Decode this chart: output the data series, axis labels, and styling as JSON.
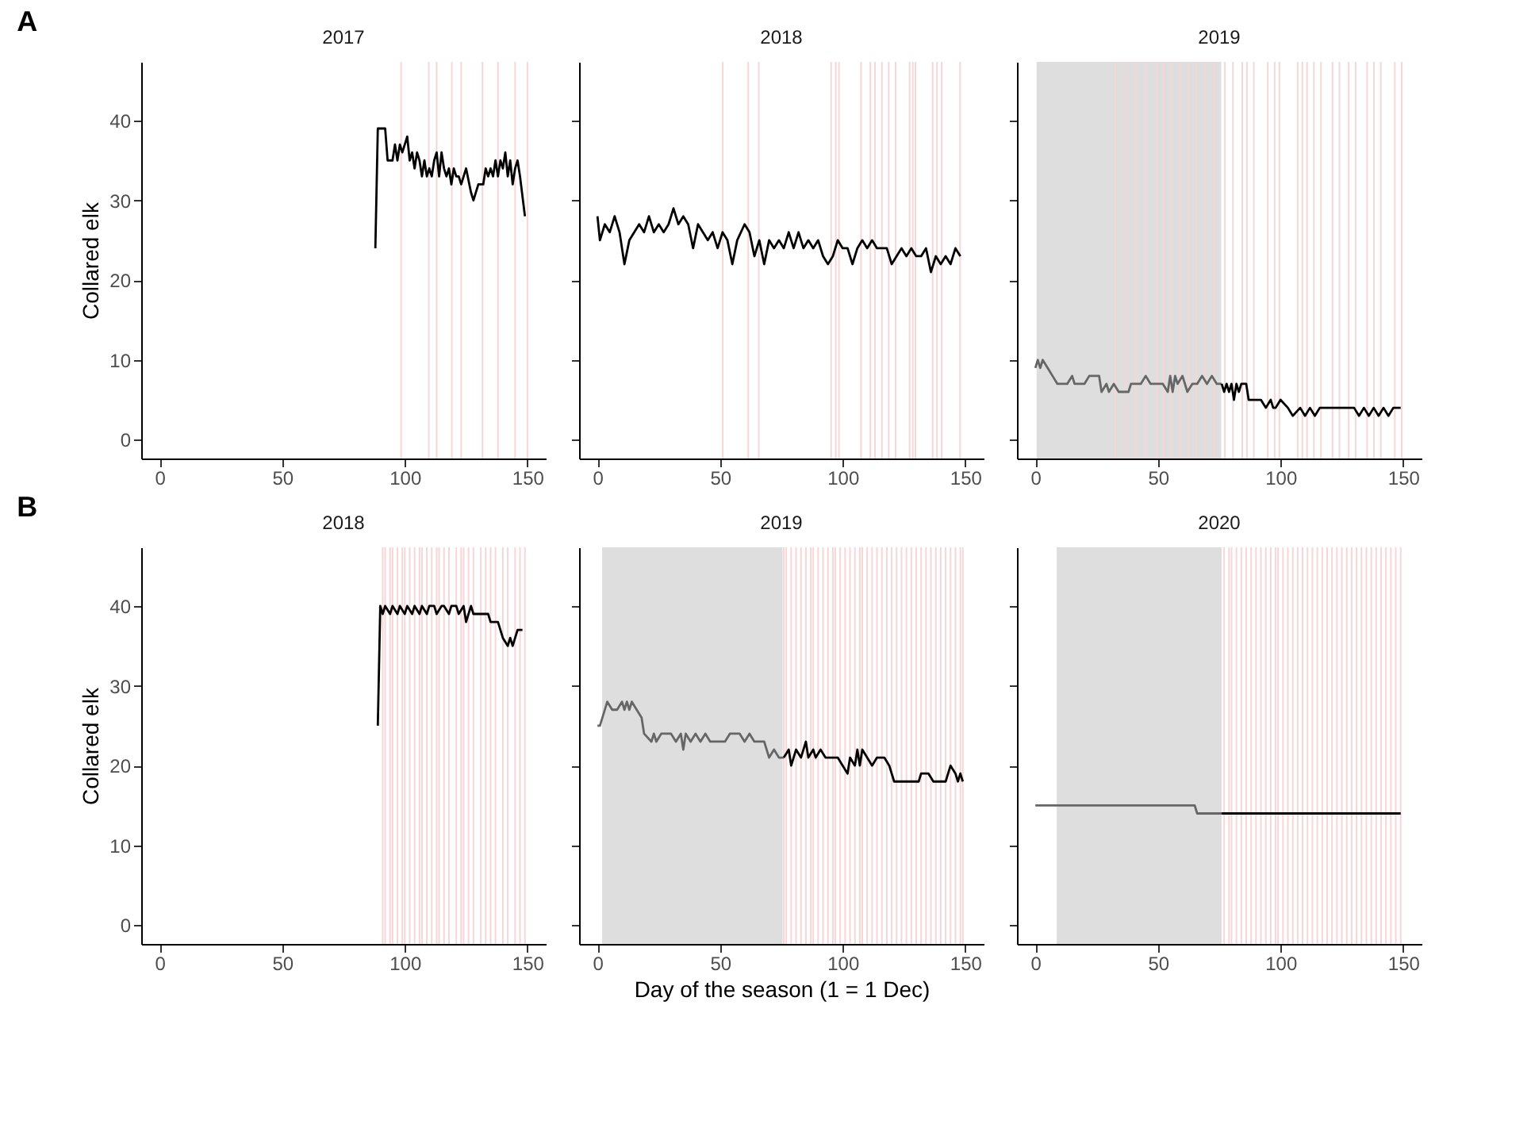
{
  "chart_data": [
    {
      "type": "line",
      "title": "2017",
      "ylabel": "Collared elk",
      "annotations": [
        "A"
      ],
      "xlim": [
        -7.5,
        157.5
      ],
      "ylim": [
        -2.35,
        47.35
      ],
      "xticks": [
        0,
        50,
        100,
        150
      ],
      "yticks": [
        0,
        10,
        20,
        30,
        40
      ],
      "grid": false,
      "series": [
        {
          "color": "#000000",
          "x": [
            88,
            89,
            92,
            93,
            95,
            96,
            97,
            98,
            99,
            100,
            101,
            102,
            103,
            104,
            105,
            106,
            107,
            108,
            109,
            110,
            111,
            112,
            113,
            114,
            115,
            116,
            117,
            118,
            119,
            120,
            121,
            122,
            123,
            125,
            127,
            128,
            130,
            132,
            133,
            134,
            135,
            136,
            137,
            138,
            139,
            140,
            141,
            142,
            143,
            144,
            145,
            146,
            147,
            149
          ],
          "values": [
            24,
            39,
            39,
            35,
            35,
            37,
            35,
            37,
            36,
            37,
            38,
            35,
            36,
            34,
            36,
            35,
            33,
            35,
            33,
            34,
            33,
            35,
            36,
            33,
            36,
            34,
            33,
            34,
            32,
            34,
            33,
            33,
            32,
            34,
            31,
            30,
            32,
            32,
            34,
            33,
            34,
            33,
            35,
            33,
            35,
            34,
            36,
            33,
            35,
            32,
            34,
            35,
            33,
            28
          ]
        }
      ],
      "ref_lines": [
        {
          "axis": "x",
          "value": 98.5,
          "color": "#f6d6d6"
        },
        {
          "axis": "x",
          "value": 109.8,
          "color": "#f6d6d6"
        },
        {
          "axis": "x",
          "value": 113,
          "color": "#f6d6d6"
        },
        {
          "axis": "x",
          "value": 119.2,
          "color": "#f6d6d6"
        },
        {
          "axis": "x",
          "value": 123,
          "color": "#f6d6d6"
        },
        {
          "axis": "x",
          "value": 131.7,
          "color": "#f6d6d6"
        },
        {
          "axis": "x",
          "value": 138,
          "color": "#f6d6d6"
        },
        {
          "axis": "x",
          "value": 145,
          "color": "#f6d6d6"
        },
        {
          "axis": "x",
          "value": 150,
          "color": "#f6d6d6"
        }
      ]
    },
    {
      "type": "line",
      "title": "2018",
      "xlim": [
        -7.5,
        157.5
      ],
      "ylim": [
        -2.35,
        47.35
      ],
      "xticks": [
        0,
        50,
        100,
        150
      ],
      "yticks": [
        0,
        10,
        20,
        30,
        40
      ],
      "grid": false,
      "tick_labels": "x",
      "series": [
        {
          "color": "#000000",
          "x": [
            0,
            1,
            3,
            5,
            7,
            9,
            11,
            13,
            15,
            17,
            19,
            21,
            23,
            25,
            27,
            29,
            31,
            33,
            35,
            37,
            39,
            41,
            43,
            45,
            47,
            49,
            51,
            53,
            55,
            57,
            60,
            62,
            64,
            66,
            68,
            70,
            72,
            74,
            76,
            78,
            80,
            82,
            84,
            86,
            88,
            90,
            92,
            94,
            96,
            98,
            100,
            102,
            104,
            106,
            108,
            110,
            112,
            114,
            118,
            120,
            122,
            124,
            126,
            128,
            130,
            132,
            134,
            136,
            138,
            140,
            142,
            144,
            146,
            148
          ],
          "values": [
            28,
            25,
            27,
            26,
            28,
            26,
            22,
            25,
            26,
            27,
            26,
            28,
            26,
            27,
            26,
            27,
            29,
            27,
            28,
            27,
            24,
            27,
            26,
            25,
            26,
            24,
            26,
            25,
            22,
            25,
            27,
            26,
            23,
            25,
            22,
            25,
            24,
            25,
            24,
            26,
            24,
            26,
            24,
            25,
            24,
            25,
            23,
            22,
            23,
            25,
            24,
            24,
            22,
            24,
            25,
            24,
            25,
            24,
            24,
            22,
            23,
            24,
            23,
            24,
            23,
            23,
            24,
            21,
            23,
            22,
            23,
            22,
            24,
            23
          ]
        }
      ],
      "ref_lines": [
        {
          "axis": "x",
          "value": 51.1,
          "color": "#f6d6d6"
        },
        {
          "axis": "x",
          "value": 61.5,
          "color": "#f6d6d6"
        },
        {
          "axis": "x",
          "value": 65.8,
          "color": "#f6d6d6"
        },
        {
          "axis": "x",
          "value": 95.3,
          "color": "#f6d6d6"
        },
        {
          "axis": "x",
          "value": 97.2,
          "color": "#f6d6d6"
        },
        {
          "axis": "x",
          "value": 98.5,
          "color": "#f6d6d6"
        },
        {
          "axis": "x",
          "value": 107.5,
          "color": "#f6d6d6"
        },
        {
          "axis": "x",
          "value": 111.3,
          "color": "#f6d6d6"
        },
        {
          "axis": "x",
          "value": 113.2,
          "color": "#f6d6d6"
        },
        {
          "axis": "x",
          "value": 116,
          "color": "#f6d6d6"
        },
        {
          "axis": "x",
          "value": 118.8,
          "color": "#f6d6d6"
        },
        {
          "axis": "x",
          "value": 121.6,
          "color": "#f6d6d6"
        },
        {
          "axis": "x",
          "value": 127.3,
          "color": "#f6d6d6"
        },
        {
          "axis": "x",
          "value": 128.6,
          "color": "#f6d6d6"
        },
        {
          "axis": "x",
          "value": 129.7,
          "color": "#f6d6d6"
        },
        {
          "axis": "x",
          "value": 136.7,
          "color": "#f6d6d6"
        },
        {
          "axis": "x",
          "value": 138.5,
          "color": "#f6d6d6"
        },
        {
          "axis": "x",
          "value": 140.4,
          "color": "#f6d6d6"
        },
        {
          "axis": "x",
          "value": 147.9,
          "color": "#f6d6d6"
        }
      ]
    },
    {
      "type": "line",
      "title": "2019",
      "xlim": [
        -7.5,
        157.5
      ],
      "ylim": [
        -2.35,
        47.35
      ],
      "xticks": [
        0,
        50,
        100,
        150
      ],
      "yticks": [
        0,
        10,
        20,
        30,
        40
      ],
      "grid": false,
      "tick_labels": "x",
      "bands": [
        {
          "axis": "x",
          "from": 0.5,
          "to": 75.8,
          "color": "#dedede"
        }
      ],
      "series": [
        {
          "color": "#666666",
          "x": [
            0,
            1,
            2,
            3,
            5,
            7,
            9,
            13,
            15,
            16,
            20,
            22,
            26,
            27,
            29,
            30,
            32,
            34,
            38,
            39,
            43,
            45,
            47,
            52,
            54,
            55,
            56,
            57,
            58,
            60,
            62,
            64,
            66,
            68,
            70,
            72,
            74,
            76
          ],
          "values": [
            9,
            10,
            9,
            10,
            9,
            8,
            7,
            7,
            8,
            7,
            7,
            8,
            8,
            6,
            7,
            6,
            7,
            6,
            6,
            7,
            7,
            8,
            7,
            7,
            6,
            8,
            6,
            8,
            7,
            8,
            6,
            7,
            7,
            8,
            7,
            8,
            7,
            7
          ]
        },
        {
          "color": "#000000",
          "x": [
            76,
            77,
            78,
            79,
            80,
            81,
            82,
            83,
            84,
            86,
            87,
            90,
            92,
            94,
            96,
            97,
            98,
            100,
            103,
            105,
            108,
            110,
            112,
            114,
            116,
            120,
            125,
            130,
            132,
            134,
            136,
            138,
            140,
            142,
            144,
            146,
            148,
            149
          ],
          "values": [
            7,
            6,
            7,
            6,
            7,
            5,
            7,
            6,
            7,
            7,
            5,
            5,
            5,
            4,
            5,
            4,
            4,
            5,
            4,
            3,
            4,
            3,
            4,
            3,
            4,
            4,
            4,
            4,
            3,
            4,
            3,
            4,
            3,
            4,
            3,
            4,
            4,
            4
          ]
        }
      ],
      "ref_lines": [
        {
          "axis": "x",
          "value": 32.6,
          "color": "#f6d6d6"
        },
        {
          "axis": "x",
          "value": 36.9,
          "color": "#f6d6d6"
        },
        {
          "axis": "x",
          "value": 41.1,
          "color": "#f6d6d6"
        },
        {
          "axis": "x",
          "value": 44.8,
          "color": "#f6d6d6"
        },
        {
          "axis": "x",
          "value": 49.6,
          "color": "#f6d6d6"
        },
        {
          "axis": "x",
          "value": 52.4,
          "color": "#f6d6d6"
        },
        {
          "axis": "x",
          "value": 55.2,
          "color": "#f6d6d6"
        },
        {
          "axis": "x",
          "value": 59,
          "color": "#f6d6d6"
        },
        {
          "axis": "x",
          "value": 62.7,
          "color": "#f6d6d6"
        },
        {
          "axis": "x",
          "value": 65.6,
          "color": "#f6d6d6"
        },
        {
          "axis": "x",
          "value": 69.3,
          "color": "#f6d6d6"
        },
        {
          "axis": "x",
          "value": 73.1,
          "color": "#f6d6d6"
        },
        {
          "axis": "x",
          "value": 77.3,
          "color": "#f6d6d6"
        },
        {
          "axis": "x",
          "value": 80.6,
          "color": "#f6d6d6"
        },
        {
          "axis": "x",
          "value": 84.4,
          "color": "#f6d6d6"
        },
        {
          "axis": "x",
          "value": 86.3,
          "color": "#f6d6d6"
        },
        {
          "axis": "x",
          "value": 89.1,
          "color": "#f6d6d6"
        },
        {
          "axis": "x",
          "value": 94.8,
          "color": "#f6d6d6"
        },
        {
          "axis": "x",
          "value": 97.6,
          "color": "#f6d6d6"
        },
        {
          "axis": "x",
          "value": 99.5,
          "color": "#f6d6d6"
        },
        {
          "axis": "x",
          "value": 107,
          "color": "#f6d6d6"
        },
        {
          "axis": "x",
          "value": 108.9,
          "color": "#f6d6d6"
        },
        {
          "axis": "x",
          "value": 110.8,
          "color": "#f6d6d6"
        },
        {
          "axis": "x",
          "value": 113.6,
          "color": "#f6d6d6"
        },
        {
          "axis": "x",
          "value": 116.5,
          "color": "#f6d6d6"
        },
        {
          "axis": "x",
          "value": 121.2,
          "color": "#f6d6d6"
        },
        {
          "axis": "x",
          "value": 124,
          "color": "#f6d6d6"
        },
        {
          "axis": "x",
          "value": 127.8,
          "color": "#f6d6d6"
        },
        {
          "axis": "x",
          "value": 130.6,
          "color": "#f6d6d6"
        },
        {
          "axis": "x",
          "value": 135.3,
          "color": "#f6d6d6"
        },
        {
          "axis": "x",
          "value": 138.1,
          "color": "#f6d6d6"
        },
        {
          "axis": "x",
          "value": 140.9,
          "color": "#f6d6d6"
        },
        {
          "axis": "x",
          "value": 146.6,
          "color": "#f6d6d6"
        },
        {
          "axis": "x",
          "value": 149.4,
          "color": "#f6d6d6"
        }
      ]
    },
    {
      "type": "line",
      "title": "2018",
      "ylabel": "Collared elk",
      "annotations": [
        "B"
      ],
      "xlim": [
        -7.5,
        157.5
      ],
      "ylim": [
        -2.35,
        47.35
      ],
      "xticks": [
        0,
        50,
        100,
        150
      ],
      "yticks": [
        0,
        10,
        20,
        30,
        40
      ],
      "grid": false,
      "series": [
        {
          "color": "#000000",
          "x": [
            89,
            90,
            91,
            92,
            94,
            95,
            97,
            98,
            100,
            101,
            103,
            104,
            106,
            107,
            109,
            110,
            112,
            113,
            115,
            116,
            118,
            119,
            121,
            122,
            124,
            125,
            127,
            128,
            130,
            132,
            134,
            135,
            138,
            140,
            142,
            143,
            144,
            146,
            148
          ],
          "values": [
            25,
            40,
            39,
            40,
            39,
            40,
            39,
            40,
            39,
            40,
            39,
            40,
            39,
            40,
            39,
            40,
            40,
            39,
            40,
            40,
            39,
            40,
            40,
            39,
            40,
            38,
            40,
            39,
            39,
            39,
            39,
            38,
            38,
            36,
            35,
            36,
            35,
            37,
            37
          ]
        }
      ],
      "ref_lines": [
        {
          "axis": "x",
          "value": 91,
          "color": "#f6d6d6"
        },
        {
          "axis": "x",
          "value": 92,
          "color": "#f6d6d6"
        },
        {
          "axis": "x",
          "value": 94,
          "color": "#f6d6d6"
        },
        {
          "axis": "x",
          "value": 95,
          "color": "#f6d6d6"
        },
        {
          "axis": "x",
          "value": 97,
          "color": "#f6d6d6"
        },
        {
          "axis": "x",
          "value": 99,
          "color": "#f6d6d6"
        },
        {
          "axis": "x",
          "value": 100,
          "color": "#f6d6d6"
        },
        {
          "axis": "x",
          "value": 102,
          "color": "#f6d6d6"
        },
        {
          "axis": "x",
          "value": 104,
          "color": "#f6d6d6"
        },
        {
          "axis": "x",
          "value": 106,
          "color": "#f6d6d6"
        },
        {
          "axis": "x",
          "value": 107,
          "color": "#f6d6d6"
        },
        {
          "axis": "x",
          "value": 109,
          "color": "#f6d6d6"
        },
        {
          "axis": "x",
          "value": 111,
          "color": "#f6d6d6"
        },
        {
          "axis": "x",
          "value": 113,
          "color": "#f6d6d6"
        },
        {
          "axis": "x",
          "value": 114,
          "color": "#f6d6d6"
        },
        {
          "axis": "x",
          "value": 116,
          "color": "#f6d6d6"
        },
        {
          "axis": "x",
          "value": 118,
          "color": "#f6d6d6"
        },
        {
          "axis": "x",
          "value": 121,
          "color": "#f6d6d6"
        },
        {
          "axis": "x",
          "value": 123,
          "color": "#f6d6d6"
        },
        {
          "axis": "x",
          "value": 124,
          "color": "#f6d6d6"
        },
        {
          "axis": "x",
          "value": 126,
          "color": "#f6d6d6"
        },
        {
          "axis": "x",
          "value": 128,
          "color": "#f6d6d6"
        },
        {
          "axis": "x",
          "value": 131,
          "color": "#f6d6d6"
        },
        {
          "axis": "x",
          "value": 133,
          "color": "#f6d6d6"
        },
        {
          "axis": "x",
          "value": 135,
          "color": "#f6d6d6"
        },
        {
          "axis": "x",
          "value": 137,
          "color": "#f6d6d6"
        },
        {
          "axis": "x",
          "value": 140,
          "color": "#f6d6d6"
        },
        {
          "axis": "x",
          "value": 142,
          "color": "#f6d6d6"
        },
        {
          "axis": "x",
          "value": 145,
          "color": "#f6d6d6"
        },
        {
          "axis": "x",
          "value": 147,
          "color": "#f6d6d6"
        },
        {
          "axis": "x",
          "value": 149,
          "color": "#f6d6d6"
        }
      ]
    },
    {
      "type": "line",
      "title": "2019",
      "xlabel": "Day of the season (1 = 1 Dec)",
      "xlim": [
        -7.5,
        157.5
      ],
      "ylim": [
        -2.35,
        47.35
      ],
      "xticks": [
        0,
        50,
        100,
        150
      ],
      "yticks": [
        0,
        10,
        20,
        30,
        40
      ],
      "grid": false,
      "tick_labels": "x",
      "bands": [
        {
          "axis": "x",
          "from": 1.9,
          "to": 75.5,
          "color": "#dedede"
        }
      ],
      "series": [
        {
          "color": "#666666",
          "x": [
            0,
            1,
            2,
            4,
            6,
            8,
            10,
            11,
            12,
            13,
            14,
            16,
            18,
            19,
            22,
            23,
            24,
            26,
            30,
            32,
            34,
            35,
            36,
            38,
            40,
            42,
            44,
            46,
            52,
            54,
            58,
            60,
            62,
            64,
            68,
            70,
            72,
            74,
            76
          ],
          "values": [
            25,
            25,
            26,
            28,
            27,
            27,
            28,
            27,
            28,
            27,
            28,
            27,
            26,
            24,
            23,
            24,
            23,
            24,
            24,
            23,
            24,
            22,
            24,
            23,
            24,
            23,
            24,
            23,
            23,
            24,
            24,
            23,
            24,
            23,
            23,
            21,
            22,
            21,
            21
          ]
        },
        {
          "color": "#000000",
          "x": [
            76,
            78,
            79,
            81,
            83,
            85,
            86,
            88,
            89,
            91,
            93,
            98,
            100,
            102,
            103,
            105,
            106,
            107,
            108,
            110,
            112,
            114,
            117,
            119,
            121,
            131,
            132,
            135,
            137,
            142,
            143,
            144,
            146,
            147,
            148,
            149
          ],
          "values": [
            21,
            22,
            20,
            22,
            21,
            23,
            21,
            22,
            21,
            22,
            21,
            21,
            20,
            19,
            21,
            20,
            22,
            20,
            22,
            21,
            20,
            21,
            21,
            20,
            18,
            18,
            19,
            19,
            18,
            18,
            19,
            20,
            19,
            18,
            19,
            18
          ]
        }
      ],
      "ref_lines": [
        {
          "axis": "x",
          "value": 76,
          "color": "#f6d6d6"
        },
        {
          "axis": "x",
          "value": 77,
          "color": "#f6d6d6"
        },
        {
          "axis": "x",
          "value": 79,
          "color": "#f6d6d6"
        },
        {
          "axis": "x",
          "value": 81,
          "color": "#f6d6d6"
        },
        {
          "axis": "x",
          "value": 83,
          "color": "#f6d6d6"
        },
        {
          "axis": "x",
          "value": 85,
          "color": "#f6d6d6"
        },
        {
          "axis": "x",
          "value": 87,
          "color": "#f6d6d6"
        },
        {
          "axis": "x",
          "value": 88,
          "color": "#f6d6d6"
        },
        {
          "axis": "x",
          "value": 90,
          "color": "#f6d6d6"
        },
        {
          "axis": "x",
          "value": 92,
          "color": "#f6d6d6"
        },
        {
          "axis": "x",
          "value": 94,
          "color": "#f6d6d6"
        },
        {
          "axis": "x",
          "value": 96,
          "color": "#f6d6d6"
        },
        {
          "axis": "x",
          "value": 97,
          "color": "#f6d6d6"
        },
        {
          "axis": "x",
          "value": 99,
          "color": "#f6d6d6"
        },
        {
          "axis": "x",
          "value": 101,
          "color": "#f6d6d6"
        },
        {
          "axis": "x",
          "value": 103,
          "color": "#f6d6d6"
        },
        {
          "axis": "x",
          "value": 105,
          "color": "#f6d6d6"
        },
        {
          "axis": "x",
          "value": 107,
          "color": "#f6d6d6"
        },
        {
          "axis": "x",
          "value": 108,
          "color": "#f6d6d6"
        },
        {
          "axis": "x",
          "value": 110,
          "color": "#f6d6d6"
        },
        {
          "axis": "x",
          "value": 112,
          "color": "#f6d6d6"
        },
        {
          "axis": "x",
          "value": 114,
          "color": "#f6d6d6"
        },
        {
          "axis": "x",
          "value": 116,
          "color": "#f6d6d6"
        },
        {
          "axis": "x",
          "value": 118,
          "color": "#f6d6d6"
        },
        {
          "axis": "x",
          "value": 120,
          "color": "#f6d6d6"
        },
        {
          "axis": "x",
          "value": 122,
          "color": "#f6d6d6"
        },
        {
          "axis": "x",
          "value": 124,
          "color": "#f6d6d6"
        },
        {
          "axis": "x",
          "value": 126,
          "color": "#f6d6d6"
        },
        {
          "axis": "x",
          "value": 128,
          "color": "#f6d6d6"
        },
        {
          "axis": "x",
          "value": 130,
          "color": "#f6d6d6"
        },
        {
          "axis": "x",
          "value": 132,
          "color": "#f6d6d6"
        },
        {
          "axis": "x",
          "value": 134,
          "color": "#f6d6d6"
        },
        {
          "axis": "x",
          "value": 136,
          "color": "#f6d6d6"
        },
        {
          "axis": "x",
          "value": 138,
          "color": "#f6d6d6"
        },
        {
          "axis": "x",
          "value": 140,
          "color": "#f6d6d6"
        },
        {
          "axis": "x",
          "value": 142,
          "color": "#f6d6d6"
        },
        {
          "axis": "x",
          "value": 144,
          "color": "#f6d6d6"
        },
        {
          "axis": "x",
          "value": 146,
          "color": "#f6d6d6"
        },
        {
          "axis": "x",
          "value": 148,
          "color": "#f6d6d6"
        },
        {
          "axis": "x",
          "value": 149,
          "color": "#f6d6d6"
        }
      ]
    },
    {
      "type": "line",
      "title": "2020",
      "xlim": [
        -7.5,
        157.5
      ],
      "ylim": [
        -2.35,
        47.35
      ],
      "xticks": [
        0,
        50,
        100,
        150
      ],
      "yticks": [
        0,
        10,
        20,
        30,
        40
      ],
      "grid": false,
      "tick_labels": "x",
      "bands": [
        {
          "axis": "x",
          "from": 8.7,
          "to": 76,
          "color": "#dedede"
        }
      ],
      "series": [
        {
          "color": "#666666",
          "x": [
            0,
            8,
            65,
            66,
            76
          ],
          "values": [
            15,
            15,
            15,
            14,
            14
          ]
        },
        {
          "color": "#000000",
          "x": [
            76,
            149
          ],
          "values": [
            14,
            14
          ]
        }
      ],
      "ref_lines": [
        {
          "axis": "x",
          "value": 77,
          "color": "#f6d6d6"
        },
        {
          "axis": "x",
          "value": 79,
          "color": "#f6d6d6"
        },
        {
          "axis": "x",
          "value": 80,
          "color": "#f6d6d6"
        },
        {
          "axis": "x",
          "value": 82,
          "color": "#f6d6d6"
        },
        {
          "axis": "x",
          "value": 84,
          "color": "#f6d6d6"
        },
        {
          "axis": "x",
          "value": 86,
          "color": "#f6d6d6"
        },
        {
          "axis": "x",
          "value": 88,
          "color": "#f6d6d6"
        },
        {
          "axis": "x",
          "value": 90,
          "color": "#f6d6d6"
        },
        {
          "axis": "x",
          "value": 92,
          "color": "#f6d6d6"
        },
        {
          "axis": "x",
          "value": 94,
          "color": "#f6d6d6"
        },
        {
          "axis": "x",
          "value": 96,
          "color": "#f6d6d6"
        },
        {
          "axis": "x",
          "value": 98,
          "color": "#f6d6d6"
        },
        {
          "axis": "x",
          "value": 99,
          "color": "#f6d6d6"
        },
        {
          "axis": "x",
          "value": 101,
          "color": "#f6d6d6"
        },
        {
          "axis": "x",
          "value": 103,
          "color": "#f6d6d6"
        },
        {
          "axis": "x",
          "value": 105,
          "color": "#f6d6d6"
        },
        {
          "axis": "x",
          "value": 107,
          "color": "#f6d6d6"
        },
        {
          "axis": "x",
          "value": 109,
          "color": "#f6d6d6"
        },
        {
          "axis": "x",
          "value": 111,
          "color": "#f6d6d6"
        },
        {
          "axis": "x",
          "value": 113,
          "color": "#f6d6d6"
        },
        {
          "axis": "x",
          "value": 115,
          "color": "#f6d6d6"
        },
        {
          "axis": "x",
          "value": 117,
          "color": "#f6d6d6"
        },
        {
          "axis": "x",
          "value": 119,
          "color": "#f6d6d6"
        },
        {
          "axis": "x",
          "value": 121,
          "color": "#f6d6d6"
        },
        {
          "axis": "x",
          "value": 123,
          "color": "#f6d6d6"
        },
        {
          "axis": "x",
          "value": 125,
          "color": "#f6d6d6"
        },
        {
          "axis": "x",
          "value": 127,
          "color": "#f6d6d6"
        },
        {
          "axis": "x",
          "value": 129,
          "color": "#f6d6d6"
        },
        {
          "axis": "x",
          "value": 131,
          "color": "#f6d6d6"
        },
        {
          "axis": "x",
          "value": 133,
          "color": "#f6d6d6"
        },
        {
          "axis": "x",
          "value": 135,
          "color": "#f6d6d6"
        },
        {
          "axis": "x",
          "value": 137,
          "color": "#f6d6d6"
        },
        {
          "axis": "x",
          "value": 139,
          "color": "#f6d6d6"
        },
        {
          "axis": "x",
          "value": 141,
          "color": "#f6d6d6"
        },
        {
          "axis": "x",
          "value": 143,
          "color": "#f6d6d6"
        },
        {
          "axis": "x",
          "value": 145,
          "color": "#f6d6d6"
        },
        {
          "axis": "x",
          "value": 147,
          "color": "#f6d6d6"
        },
        {
          "axis": "x",
          "value": 149,
          "color": "#f6d6d6"
        }
      ]
    }
  ]
}
